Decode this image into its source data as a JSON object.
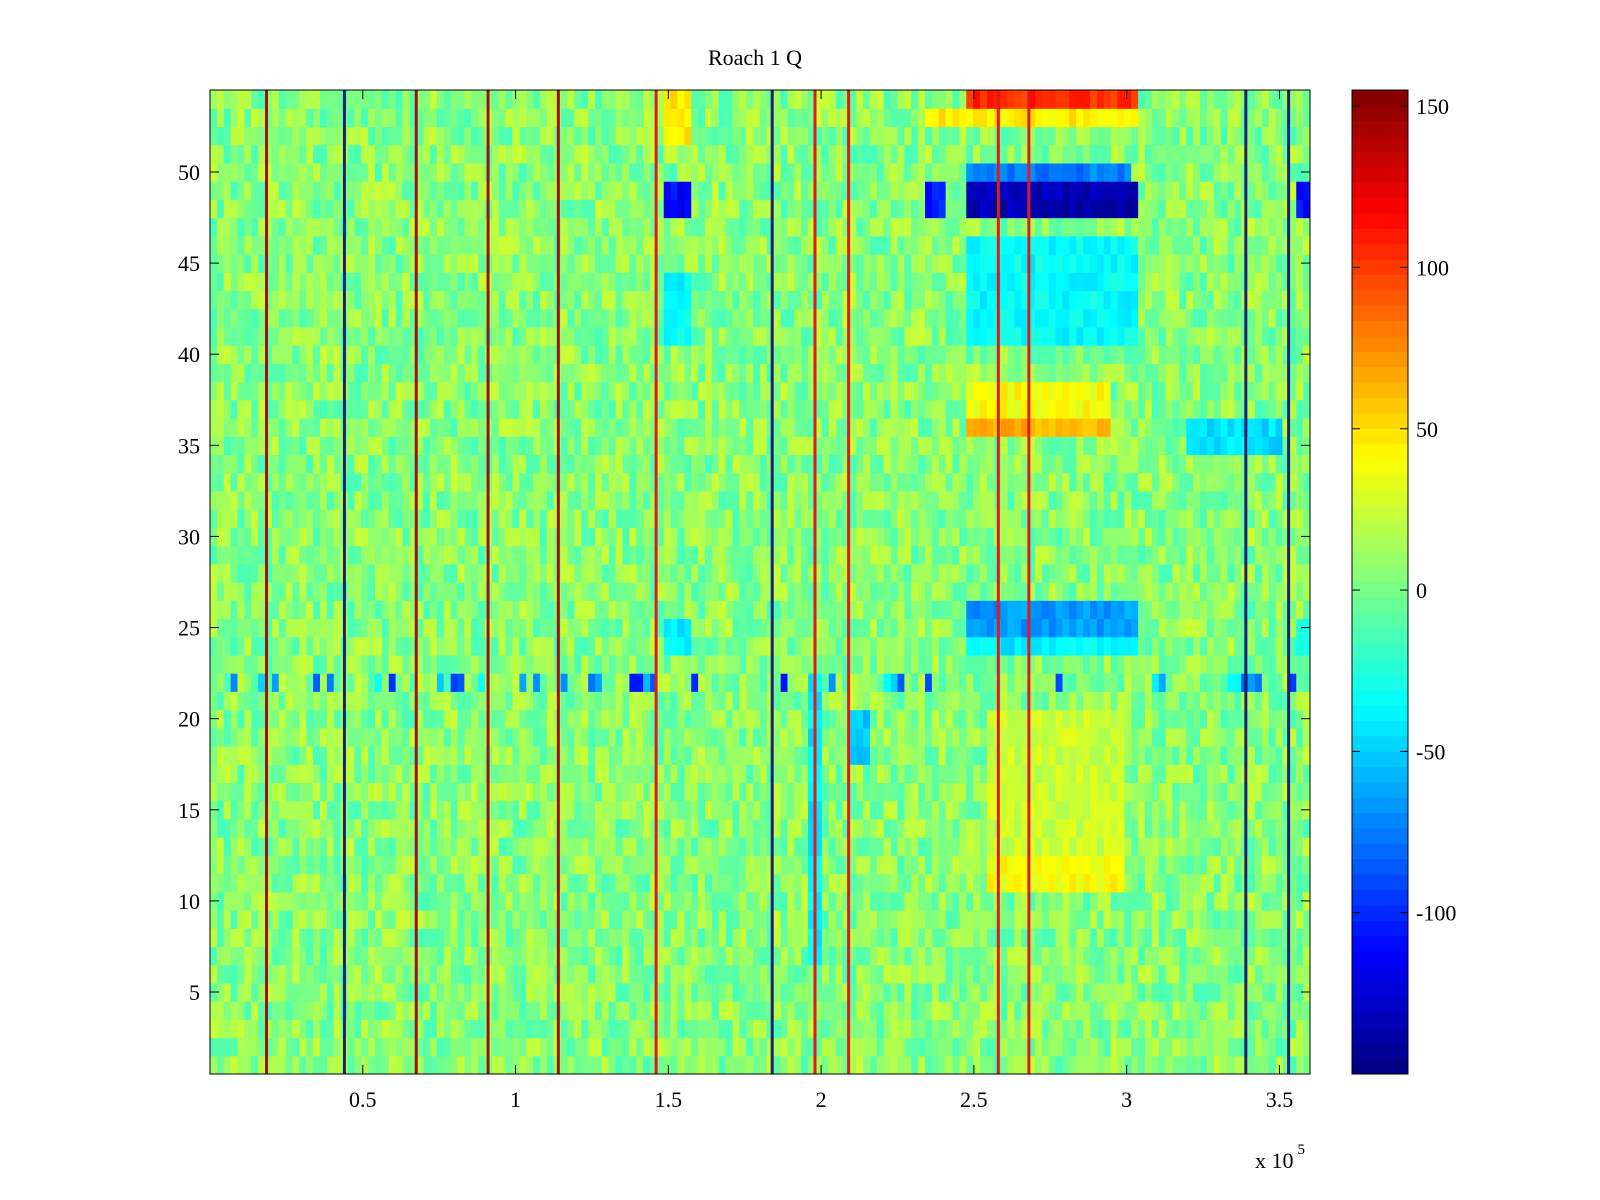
{
  "chart_data": {
    "type": "heatmap",
    "title": "Roach 1 Q",
    "xlabel": "",
    "ylabel": "",
    "x_multiplier_label": "x 10",
    "x_multiplier_exponent": "5",
    "xlim": [
      0,
      360000
    ],
    "ylim": [
      0.5,
      54.5
    ],
    "x_ticks": [
      50000,
      100000,
      150000,
      200000,
      250000,
      300000,
      350000
    ],
    "x_tick_labels": [
      "0.5",
      "1",
      "1.5",
      "2",
      "2.5",
      "3",
      "3.5"
    ],
    "y_ticks": [
      5,
      10,
      15,
      20,
      25,
      30,
      35,
      40,
      45,
      50
    ],
    "y_tick_labels": [
      "5",
      "10",
      "15",
      "20",
      "25",
      "30",
      "35",
      "40",
      "45",
      "50"
    ],
    "colormap": "jet",
    "clim": [
      -150,
      155
    ],
    "colorbar_ticks": [
      150,
      100,
      50,
      0,
      -50,
      -100
    ],
    "colorbar_tick_labels": [
      "150",
      "100",
      "50",
      "0",
      "-50",
      "-100"
    ],
    "rows": 54,
    "baseline_value": 5,
    "vertical_lines": [
      {
        "x": 18500,
        "color": "#a01010"
      },
      {
        "x": 44000,
        "color": "#202070"
      },
      {
        "x": 67500,
        "color": "#a01010"
      },
      {
        "x": 91000,
        "color": "#a01010"
      },
      {
        "x": 114000,
        "color": "#a01010"
      },
      {
        "x": 146000,
        "color": "#e01a1a"
      },
      {
        "x": 184000,
        "color": "#202070"
      },
      {
        "x": 198000,
        "color": "#e01a1a"
      },
      {
        "x": 209000,
        "color": "#e01a1a"
      },
      {
        "x": 258000,
        "color": "#e01a1a"
      },
      {
        "x": 268000,
        "color": "#e01a1a"
      },
      {
        "x": 339000,
        "color": "#202070"
      },
      {
        "x": 353000,
        "color": "#202070"
      }
    ],
    "regions": [
      {
        "x": [
          248000,
          303000
        ],
        "y": [
          47.5,
          49.5
        ],
        "value": -135
      },
      {
        "x": [
          248000,
          302000
        ],
        "y": [
          49.5,
          50.5
        ],
        "value": -75
      },
      {
        "x": [
          148000,
          157000
        ],
        "y": [
          47.5,
          49.5
        ],
        "value": -110
      },
      {
        "x": [
          233000,
          241000
        ],
        "y": [
          47.5,
          49.5
        ],
        "value": -105
      },
      {
        "x": [
          355000,
          360000
        ],
        "y": [
          47.5,
          49.5
        ],
        "value": -110
      },
      {
        "x": [
          248000,
          303000
        ],
        "y": [
          53.5,
          54.5
        ],
        "value": 105
      },
      {
        "x": [
          233000,
          303000
        ],
        "y": [
          52.5,
          53.5
        ],
        "value": 45
      },
      {
        "x": [
          148000,
          157000
        ],
        "y": [
          51.5,
          54.5
        ],
        "value": 50
      },
      {
        "x": [
          248000,
          295000
        ],
        "y": [
          35.5,
          36.5
        ],
        "value": 65
      },
      {
        "x": [
          248000,
          295000
        ],
        "y": [
          36.5,
          38.5
        ],
        "value": 40
      },
      {
        "x": [
          248000,
          303000
        ],
        "y": [
          24.5,
          26.5
        ],
        "value": -65
      },
      {
        "x": [
          248000,
          303000
        ],
        "y": [
          23.5,
          24.5
        ],
        "value": -40
      },
      {
        "x": [
          248000,
          303000
        ],
        "y": [
          40.5,
          46.5
        ],
        "value": -35
      },
      {
        "x": [
          148000,
          157000
        ],
        "y": [
          40.5,
          44.5
        ],
        "value": -35
      },
      {
        "x": [
          148000,
          157000
        ],
        "y": [
          23.5,
          25.5
        ],
        "value": -40
      },
      {
        "x": [
          355000,
          360000
        ],
        "y": [
          23.5,
          25.5
        ],
        "value": -35
      },
      {
        "x": [
          195000,
          200000
        ],
        "y": [
          6.5,
          22.5
        ],
        "value": -40
      },
      {
        "x": [
          210000,
          215000
        ],
        "y": [
          17.5,
          20.5
        ],
        "value": -55
      },
      {
        "x": [
          255000,
          300000
        ],
        "y": [
          10.5,
          12.5
        ],
        "value": 40
      },
      {
        "x": [
          255000,
          300000
        ],
        "y": [
          12.5,
          20.5
        ],
        "value": 25
      },
      {
        "x": [
          320000,
          350000
        ],
        "y": [
          34.5,
          36.5
        ],
        "value": -45
      }
    ],
    "noisy_row": {
      "y": 22,
      "x": [
        0,
        360000
      ],
      "value": -15
    }
  }
}
